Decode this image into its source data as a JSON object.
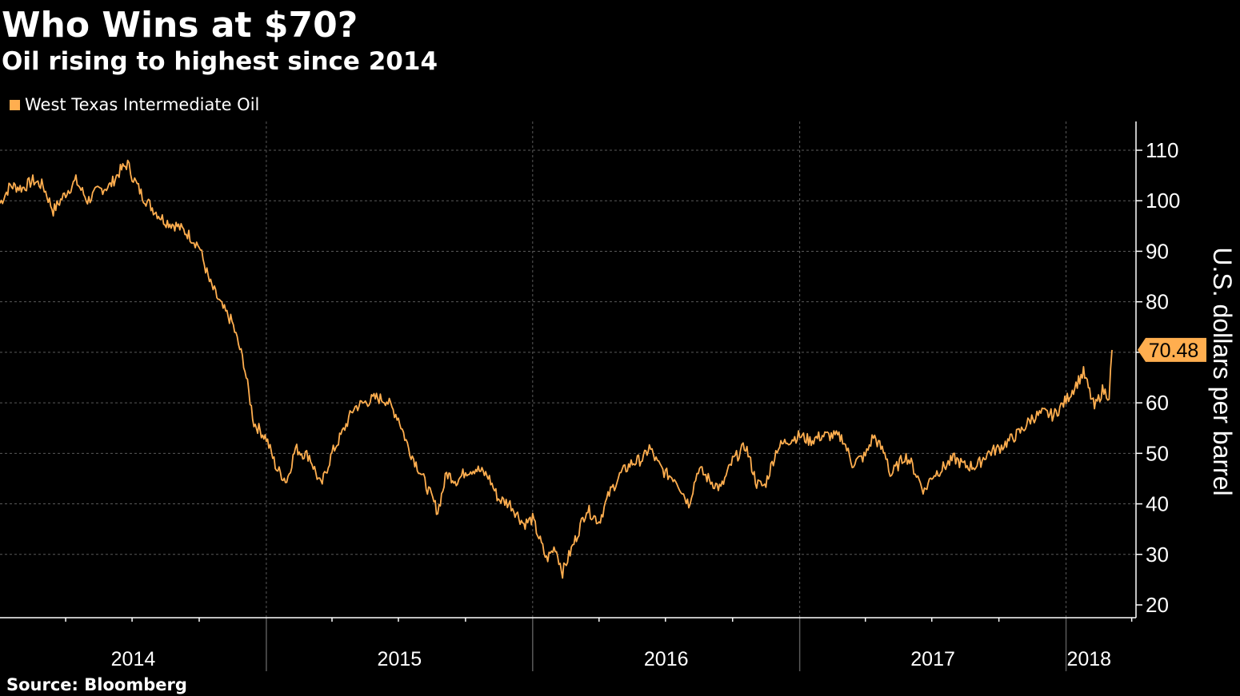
{
  "header": {
    "title": "Who Wins at $70?",
    "subtitle": "Oil rising to highest since 2014"
  },
  "footer": {
    "source": "Source: Bloomberg"
  },
  "colors": {
    "background": "#000000",
    "series": "#FFAE4F",
    "grid": "#5A5A5A",
    "axis": "#FFFFFF",
    "callout_text": "#000000"
  },
  "chart_data": {
    "type": "line",
    "title": "Who Wins at $70?",
    "subtitle": "Oil rising to highest since 2014",
    "ylabel": "U.S. dollars per barrel",
    "xlabel": "",
    "ylim": [
      20,
      115
    ],
    "xlim": [
      "2014-01-01",
      "2018-03-05"
    ],
    "y_ticks": [
      20,
      30,
      40,
      50,
      60,
      70,
      80,
      90,
      100,
      110
    ],
    "x_tick_labels": [
      "2014",
      "2015",
      "2016",
      "2017",
      "2018"
    ],
    "grid": true,
    "legend_position": "top-left",
    "y_axis_position": "right",
    "series": [
      {
        "name": "West Texas Intermediate Oil",
        "color": "#FFAE4F",
        "x": [
          "2014-01-01",
          "2014-01-15",
          "2014-02-01",
          "2014-02-15",
          "2014-03-01",
          "2014-03-15",
          "2014-04-01",
          "2014-04-15",
          "2014-05-01",
          "2014-05-15",
          "2014-06-01",
          "2014-06-15",
          "2014-06-25",
          "2014-07-01",
          "2014-07-15",
          "2014-08-01",
          "2014-08-15",
          "2014-09-01",
          "2014-09-15",
          "2014-10-01",
          "2014-10-15",
          "2014-11-01",
          "2014-11-15",
          "2014-12-01",
          "2014-12-15",
          "2015-01-01",
          "2015-01-15",
          "2015-01-29",
          "2015-02-10",
          "2015-02-20",
          "2015-03-01",
          "2015-03-17",
          "2015-04-01",
          "2015-04-15",
          "2015-05-01",
          "2015-05-15",
          "2015-06-01",
          "2015-06-15",
          "2015-07-01",
          "2015-07-15",
          "2015-08-01",
          "2015-08-24",
          "2015-09-05",
          "2015-09-20",
          "2015-10-01",
          "2015-10-15",
          "2015-11-01",
          "2015-11-15",
          "2015-12-01",
          "2015-12-20",
          "2016-01-01",
          "2016-01-20",
          "2016-02-01",
          "2016-02-11",
          "2016-03-01",
          "2016-03-15",
          "2016-04-01",
          "2016-04-15",
          "2016-05-01",
          "2016-05-15",
          "2016-06-01",
          "2016-06-09",
          "2016-06-20",
          "2016-07-01",
          "2016-07-15",
          "2016-08-02",
          "2016-08-15",
          "2016-09-01",
          "2016-09-15",
          "2016-10-01",
          "2016-10-19",
          "2016-11-03",
          "2016-11-14",
          "2016-12-01",
          "2016-12-15",
          "2017-01-01",
          "2017-01-15",
          "2017-02-01",
          "2017-02-15",
          "2017-03-01",
          "2017-03-14",
          "2017-04-01",
          "2017-04-12",
          "2017-05-01",
          "2017-05-05",
          "2017-05-25",
          "2017-06-01",
          "2017-06-21",
          "2017-07-01",
          "2017-07-15",
          "2017-08-01",
          "2017-08-15",
          "2017-09-01",
          "2017-09-15",
          "2017-10-01",
          "2017-10-15",
          "2017-11-01",
          "2017-11-15",
          "2017-12-01",
          "2017-12-15",
          "2018-01-01",
          "2018-01-25",
          "2018-02-09",
          "2018-02-20",
          "2018-03-01",
          "2018-03-05"
        ],
        "values": [
          99.5,
          103,
          102.5,
          104,
          103,
          98,
          101.5,
          104,
          100,
          102,
          103,
          106,
          107.3,
          105,
          101,
          98,
          96,
          95,
          93.5,
          91,
          84,
          79,
          76,
          68,
          56,
          53,
          47,
          44.5,
          51,
          50,
          49.5,
          43.5,
          50,
          54,
          59,
          60,
          61,
          60.5,
          57,
          51,
          46,
          38.5,
          46,
          44.5,
          46.5,
          47,
          45.5,
          41,
          40,
          36,
          37,
          29,
          31.5,
          26.5,
          33.5,
          39,
          36.5,
          42,
          46,
          48,
          49,
          51.2,
          48,
          46,
          45,
          40,
          47,
          44.5,
          43,
          48.5,
          51.5,
          44,
          43.5,
          51,
          52.5,
          53.5,
          52.5,
          53.5,
          53.5,
          53,
          48,
          49.5,
          53.5,
          49,
          45.5,
          49.5,
          48.5,
          42.5,
          45.5,
          47,
          49,
          47.5,
          47.5,
          50,
          51,
          52.5,
          54.5,
          57,
          58,
          57.5,
          60.5,
          66,
          59,
          62.5,
          61.5,
          70.48
        ]
      }
    ],
    "last_value_label": "70.48"
  }
}
